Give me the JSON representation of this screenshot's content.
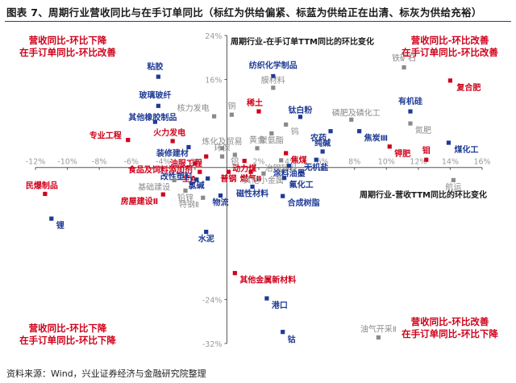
{
  "figure": {
    "title": "图表 7、周期行业营收同比与在手订单同比（标红为供给偏紧、标蓝为供给正在出清、标灰为供给充裕）",
    "source": "资料来源：Wind，兴业证券经济与金融研究院整理"
  },
  "colors": {
    "red": "#d0021b",
    "blue": "#1f3b95",
    "gray": "#8a8a8a",
    "axis": "#555555",
    "title_rule": "#2e3a8c"
  },
  "quadrants": {
    "top_left": [
      "营收同比-环比下降",
      "在手订单同比-环比改善"
    ],
    "top_right": [
      "营收同比-环比改善",
      "在手订单同比-环比改善"
    ],
    "bottom_left": [
      "营收同比-环比下降",
      "在手订单同比-环比下降"
    ],
    "bottom_right": [
      "营收同比-环比改善",
      "在手订单同比-环比下降"
    ]
  },
  "chart_data": {
    "type": "scatter",
    "title": "",
    "xlabel": "周期行业-营收TTM同比的环比变化",
    "ylabel": "周期行业-在手订单TTM同比的环比变化",
    "xlim": [
      -12,
      16
    ],
    "ylim": [
      -32,
      24
    ],
    "x_ticks": [
      -12,
      -10,
      -8,
      -6,
      -4,
      -2,
      0,
      2,
      4,
      6,
      8,
      10,
      12,
      14,
      16
    ],
    "x_tick_labels": [
      "-12%",
      "-10%",
      "-8%",
      "-6%",
      "-4%",
      "-2%",
      "",
      "2%",
      "4%",
      "6%",
      "8%",
      "10%",
      "12%",
      "14%",
      "16%"
    ],
    "y_ticks": [
      24,
      16,
      -24,
      -32
    ],
    "y_tick_labels": [
      "24%",
      "16%",
      "-24%",
      "-32%"
    ],
    "points": [
      {
        "name": "粘胶",
        "x": -4.3,
        "y": 16.5,
        "group": "blue"
      },
      {
        "name": "玻璃玻纤",
        "x": -4.3,
        "y": 11.2,
        "group": "blue"
      },
      {
        "name": "其他橡胶制品",
        "x": -4.5,
        "y": 8.3,
        "group": "blue"
      },
      {
        "name": "专业工程",
        "x": -6.2,
        "y": 5.0,
        "group": "red"
      },
      {
        "name": "火力发电",
        "x": -3.4,
        "y": 4.8,
        "group": "red"
      },
      {
        "name": "装修建材",
        "x": -2.4,
        "y": 3.7,
        "group": "blue"
      },
      {
        "name": "核力发电",
        "x": -0.8,
        "y": 9.3,
        "group": "gray"
      },
      {
        "name": "铜",
        "x": 0.3,
        "y": 9.6,
        "group": "gray"
      },
      {
        "name": "纺织化学制品",
        "x": 2.9,
        "y": 16.6,
        "group": "blue"
      },
      {
        "name": "膜材料",
        "x": 2.9,
        "y": 14.5,
        "group": "gray"
      },
      {
        "name": "铁矿石",
        "x": 11.1,
        "y": 18.2,
        "group": "gray"
      },
      {
        "name": "复合肥",
        "x": 14.0,
        "y": 15.8,
        "group": "red"
      },
      {
        "name": "稀土",
        "x": 2.0,
        "y": 10.2,
        "group": "red"
      },
      {
        "name": "钛白粉",
        "x": 4.6,
        "y": 9.2,
        "group": "blue"
      },
      {
        "name": "钨",
        "x": 3.7,
        "y": 7.8,
        "group": "gray"
      },
      {
        "name": "磷肥及磷化工",
        "x": 7.8,
        "y": 8.7,
        "group": "gray"
      },
      {
        "name": "有机硅",
        "x": 11.5,
        "y": 10.2,
        "group": "blue"
      },
      {
        "name": "氮肥",
        "x": 11.5,
        "y": 8.0,
        "group": "gray"
      },
      {
        "name": "焦炭Ⅲ",
        "x": 8.3,
        "y": 6.6,
        "group": "blue"
      },
      {
        "name": "农药",
        "x": 6.5,
        "y": 6.6,
        "group": "blue"
      },
      {
        "name": "聚氨酯",
        "x": 2.8,
        "y": 6.2,
        "group": "gray"
      },
      {
        "name": "煤化工",
        "x": 13.9,
        "y": 4.5,
        "group": "blue"
      },
      {
        "name": "钾肥",
        "x": 10.2,
        "y": 3.8,
        "group": "red"
      },
      {
        "name": "纯碱",
        "x": 6.0,
        "y": 2.9,
        "group": "blue"
      },
      {
        "name": "炼化及贸易",
        "x": -0.3,
        "y": 3.5,
        "group": "gray"
      },
      {
        "name": "黄金",
        "x": 1.9,
        "y": 3.5,
        "group": "gray"
      },
      {
        "name": "焦煤",
        "x": 3.7,
        "y": 2.6,
        "group": "red"
      },
      {
        "name": "铝",
        "x": 0.5,
        "y": 2.3,
        "group": "gray"
      },
      {
        "name": "钼",
        "x": 12.5,
        "y": 1.4,
        "group": "red"
      },
      {
        "name": "无机盐",
        "x": 5.6,
        "y": 1.4,
        "group": "blue"
      },
      {
        "name": "冶钢辅料",
        "x": 3.4,
        "y": 1.3,
        "group": "gray"
      },
      {
        "name": "动力煤",
        "x": 1.1,
        "y": 1.2,
        "group": "red"
      },
      {
        "name": "食品及饲料添加剂",
        "x": -2.0,
        "y": 0.7,
        "group": "red"
      },
      {
        "name": "油服工程",
        "x": -1.3,
        "y": 2.0,
        "group": "red"
      },
      {
        "name": "环保",
        "x": -0.3,
        "y": 2.0,
        "group": "gray"
      },
      {
        "name": "涂料油墨",
        "x": 3.9,
        "y": 0.3,
        "group": "blue"
      },
      {
        "name": "全A",
        "x": -1.7,
        "y": -0.8,
        "group": "red"
      },
      {
        "name": "普钢",
        "x": 0.1,
        "y": -0.8,
        "group": "red"
      },
      {
        "name": "燃气Ⅱ",
        "x": 1.5,
        "y": -0.8,
        "group": "red"
      },
      {
        "name": "其他小金属",
        "x": 2.3,
        "y": -1.1,
        "group": "gray"
      },
      {
        "name": "氯碱",
        "x": -1.2,
        "y": -2.0,
        "group": "blue"
      },
      {
        "name": "改性塑料",
        "x": -1.9,
        "y": -2.2,
        "group": "blue"
      },
      {
        "name": "基础建设",
        "x": -3.3,
        "y": -2.3,
        "group": "gray"
      },
      {
        "name": "氟化工",
        "x": 3.6,
        "y": -1.9,
        "group": "blue"
      },
      {
        "name": "磁性材料",
        "x": 1.6,
        "y": -3.5,
        "group": "blue"
      },
      {
        "name": "铅锌",
        "x": -2.6,
        "y": -4.2,
        "group": "gray"
      },
      {
        "name": "房屋建设Ⅱ",
        "x": -4.0,
        "y": -4.9,
        "group": "red"
      },
      {
        "name": "特钢Ⅱ",
        "x": -1.5,
        "y": -5.5,
        "group": "gray"
      },
      {
        "name": "物流",
        "x": -0.4,
        "y": -5.1,
        "group": "blue"
      },
      {
        "name": "合成树脂",
        "x": 3.5,
        "y": -5.2,
        "group": "blue"
      },
      {
        "name": "航运",
        "x": 14.2,
        "y": -2.3,
        "group": "gray"
      },
      {
        "name": "民爆制品",
        "x": -11.4,
        "y": -4.8,
        "group": "red"
      },
      {
        "name": "锂",
        "x": -11.0,
        "y": -9.3,
        "group": "blue"
      },
      {
        "name": "水泥",
        "x": -1.3,
        "y": -11.7,
        "group": "blue"
      },
      {
        "name": "其他金属新材料",
        "x": 0.5,
        "y": -19.2,
        "group": "red"
      },
      {
        "name": "港口",
        "x": 2.5,
        "y": -23.8,
        "group": "blue"
      },
      {
        "name": "钴",
        "x": 3.5,
        "y": -29.9,
        "group": "blue"
      },
      {
        "name": "油气开采Ⅱ",
        "x": 9.5,
        "y": -30.9,
        "group": "gray"
      }
    ]
  }
}
